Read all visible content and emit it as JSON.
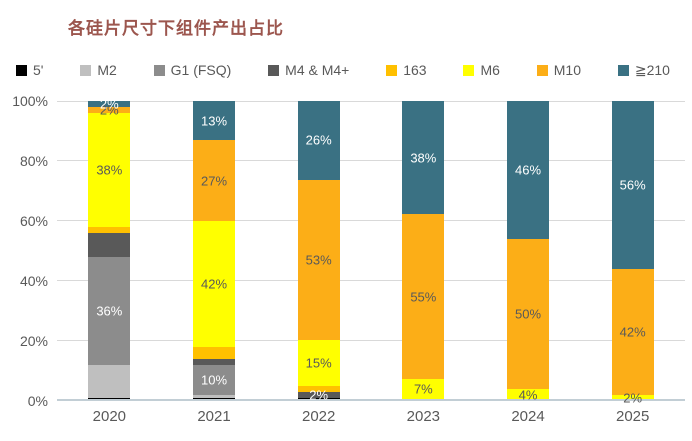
{
  "title": "各硅片尺寸下组件产出占比",
  "colors": {
    "title_text": "#9C564E",
    "axis_text": "#595959",
    "gridline": "#D9D9D9",
    "axis_line": "#C2CED5",
    "background": "#FFFFFF"
  },
  "chart_data": {
    "type": "bar",
    "subtype": "stacked-100-percent",
    "title": "各硅片尺寸下组件产出占比",
    "categories": [
      "2020",
      "2021",
      "2022",
      "2023",
      "2024",
      "2025"
    ],
    "yticks": [
      "0%",
      "20%",
      "40%",
      "60%",
      "80%",
      "100%"
    ],
    "ylim": [
      0,
      100
    ],
    "grid": "horizontal",
    "legend_position": "top",
    "series": [
      {
        "name": "5'",
        "color": "#000000",
        "label_color": "#FFFFFF",
        "values": [
          1,
          1,
          1,
          0.5,
          0,
          0
        ],
        "labels": [
          "",
          "",
          "",
          "",
          "",
          ""
        ]
      },
      {
        "name": "M2",
        "color": "#BFBFBF",
        "label_color": "#FFFFFF",
        "values": [
          11,
          1,
          0,
          0,
          0,
          0
        ],
        "labels": [
          "",
          "",
          "",
          "",
          "",
          ""
        ]
      },
      {
        "name": "G1 (FSQ)",
        "color": "#8C8C8C",
        "label_color": "#FFFFFF",
        "values": [
          36,
          10,
          0,
          0,
          0,
          0
        ],
        "labels": [
          "36%",
          "10%",
          "",
          "",
          "",
          ""
        ]
      },
      {
        "name": "M4 & M4+",
        "color": "#595959",
        "label_color": "#FFFFFF",
        "values": [
          8,
          2,
          2,
          0,
          0,
          0
        ],
        "labels": [
          "",
          "",
          "2%",
          "",
          "",
          ""
        ]
      },
      {
        "name": "163",
        "color": "#FFC000",
        "label_color": "#595959",
        "values": [
          2,
          4,
          2,
          0,
          0,
          0
        ],
        "labels": [
          "",
          "",
          "",
          "",
          "",
          ""
        ]
      },
      {
        "name": "M6",
        "color": "#FFFF00",
        "label_color": "#595959",
        "values": [
          38,
          42,
          15,
          7,
          4,
          2
        ],
        "labels": [
          "38%",
          "42%",
          "15%",
          "7%",
          "4%",
          "2%"
        ]
      },
      {
        "name": "M10",
        "color": "#FCAE17",
        "label_color": "#595959",
        "values": [
          2,
          27,
          53,
          55,
          50,
          42
        ],
        "labels": [
          "2%",
          "27%",
          "53%",
          "55%",
          "50%",
          "42%"
        ]
      },
      {
        "name": "≧210",
        "color": "#3A7183",
        "label_color": "#FFFFFF",
        "values": [
          2,
          13,
          26,
          38,
          46,
          56
        ],
        "labels": [
          "2%",
          "13%",
          "26%",
          "38%",
          "46%",
          "56%"
        ]
      }
    ]
  }
}
